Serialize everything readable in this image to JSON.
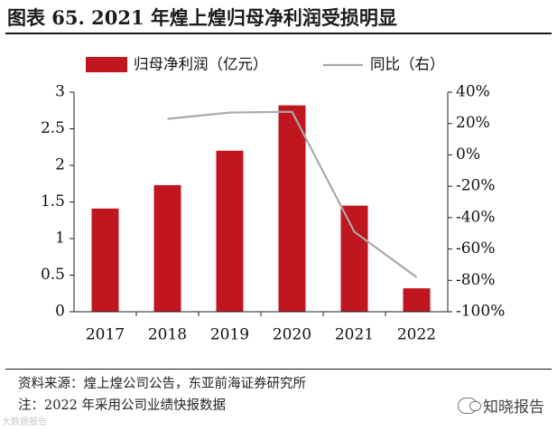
{
  "header": {
    "title": "图表 65. 2021 年煌上煌归母净利润受损明显"
  },
  "colors": {
    "bar": "#c0161f",
    "line": "#a9a9a9",
    "axis": "#222222"
  },
  "chart_data": {
    "type": "bar",
    "categories": [
      "2017",
      "2018",
      "2019",
      "2020",
      "2021",
      "2022"
    ],
    "series": [
      {
        "name": "归母净利润（亿元）",
        "kind": "bar",
        "axis": "left",
        "values": [
          1.41,
          1.73,
          2.2,
          2.82,
          1.45,
          0.32
        ]
      },
      {
        "name": "同比（右）",
        "kind": "line",
        "axis": "right",
        "values": [
          null,
          23,
          27,
          27.5,
          -49,
          -78
        ]
      }
    ],
    "left_axis": {
      "ylim": [
        0,
        3
      ],
      "ticks": [
        "0",
        "0.5",
        "1",
        "1.5",
        "2",
        "2.5",
        "3"
      ]
    },
    "right_axis": {
      "ylim": [
        -100,
        40
      ],
      "ticks": [
        "-100%",
        "-80%",
        "-60%",
        "-40%",
        "-20%",
        "0%",
        "20%",
        "40%"
      ]
    },
    "legend_position": "top",
    "title": "2021 年煌上煌归母净利润受损明显"
  },
  "footer": {
    "source": "资料来源：煌上煌公司公告，东亚前海证券研究所",
    "note": "注：2022 年采用公司业绩快报数据"
  },
  "watermarks": {
    "right": "知晓报告",
    "left": "大数据报告"
  }
}
